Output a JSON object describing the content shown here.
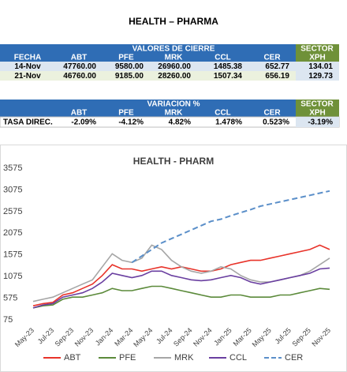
{
  "header": {
    "title": "HEALTH – PHARMA"
  },
  "table1": {
    "group_header": "VALORES DE CIERRE",
    "sector_header": "SECTOR",
    "columns": [
      "FECHA",
      "ABT",
      "PFE",
      "MRK",
      "CCL",
      "CER",
      "XPH"
    ],
    "rows": [
      [
        "14-Nov",
        "47760.00",
        "9580.00",
        "26960.00",
        "1485.38",
        "652.77",
        "134.01"
      ],
      [
        "21-Nov",
        "46760.00",
        "9185.00",
        "28260.00",
        "1507.34",
        "656.19",
        "129.73"
      ]
    ]
  },
  "table2": {
    "group_header": "VARIACION %",
    "sector_header": "SECTOR",
    "columns": [
      "ABT",
      "PFE",
      "MRK",
      "CCL",
      "CER",
      "XPH"
    ],
    "rows": [
      {
        "label": "TASA DIREC.",
        "values": [
          "-2.09%",
          "-4.12%",
          "4.82%",
          "1.478%",
          "0.523%",
          "-3.19%"
        ]
      }
    ]
  },
  "chart_data": {
    "type": "line",
    "title": "HEALTH - PHARM",
    "categories": [
      "May-23",
      null,
      "Jul-23",
      null,
      "Sep-23",
      null,
      "Nov-23",
      null,
      "Jan-24",
      null,
      "Mar-24",
      null,
      "May-24",
      null,
      "Jul-24",
      null,
      "Sep-24",
      null,
      "Nov-24",
      null,
      "Jan-25",
      null,
      "Mar-25",
      null,
      "May-25",
      null,
      "Jul-25",
      null,
      "Sep-25",
      null,
      "Nov-25"
    ],
    "ylim": [
      75,
      3575
    ],
    "yticks": [
      75,
      575,
      1075,
      1575,
      2075,
      2575,
      3075,
      3575
    ],
    "grid": false,
    "legend": "bottom",
    "series": [
      {
        "name": "ABT",
        "color": "#e8332a",
        "dash": false,
        "values": [
          400,
          450,
          480,
          650,
          700,
          800,
          900,
          1100,
          1350,
          1250,
          1250,
          1200,
          1250,
          1300,
          1250,
          1300,
          1250,
          1200,
          1200,
          1250,
          1350,
          1400,
          1450,
          1450,
          1500,
          1550,
          1600,
          1650,
          1700,
          1800,
          1700
        ]
      },
      {
        "name": "PFE",
        "color": "#5b8a3a",
        "dash": false,
        "values": [
          350,
          400,
          420,
          550,
          600,
          600,
          650,
          700,
          800,
          750,
          750,
          800,
          850,
          850,
          800,
          750,
          700,
          650,
          600,
          600,
          650,
          650,
          600,
          600,
          600,
          650,
          650,
          700,
          750,
          800,
          780
        ]
      },
      {
        "name": "MRK",
        "color": "#a6a6a6",
        "dash": false,
        "values": [
          500,
          550,
          600,
          700,
          800,
          900,
          1000,
          1300,
          1600,
          1450,
          1400,
          1500,
          1800,
          1700,
          1450,
          1300,
          1200,
          1150,
          1200,
          1300,
          1250,
          1100,
          1000,
          950,
          950,
          1000,
          1050,
          1100,
          1200,
          1350,
          1500
        ]
      },
      {
        "name": "CCL",
        "color": "#6a3fa0",
        "dash": false,
        "values": [
          350,
          420,
          450,
          600,
          650,
          700,
          800,
          950,
          1150,
          1100,
          1050,
          1100,
          1200,
          1200,
          1100,
          1050,
          1000,
          980,
          1000,
          1050,
          1100,
          1050,
          950,
          900,
          950,
          1000,
          1050,
          1100,
          1150,
          1250,
          1270
        ]
      },
      {
        "name": "CER",
        "color": "#5b8fc9",
        "dash": true,
        "values": [
          null,
          null,
          null,
          null,
          null,
          null,
          null,
          null,
          null,
          null,
          1400,
          1550,
          1700,
          1850,
          1950,
          2050,
          2150,
          2250,
          2350,
          2400,
          2480,
          2550,
          2620,
          2700,
          2750,
          2800,
          2850,
          2900,
          2950,
          3000,
          3050
        ]
      }
    ]
  }
}
